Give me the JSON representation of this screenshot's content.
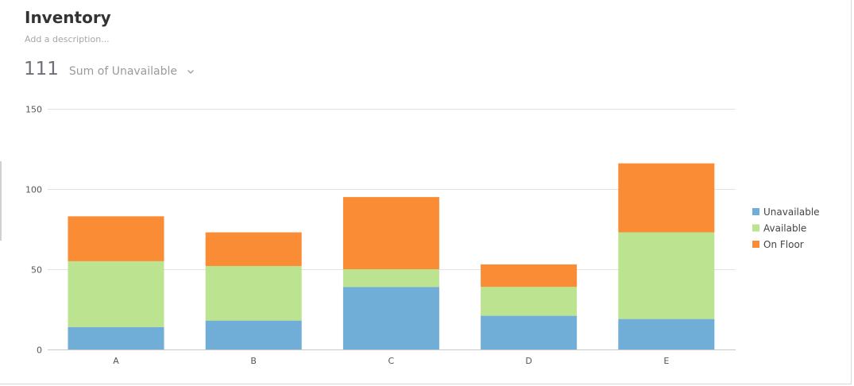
{
  "header": {
    "title": "Inventory",
    "description_placeholder": "Add a description..."
  },
  "metric": {
    "value": "111",
    "selector_label": "Sum of Unavailable"
  },
  "chart_data": {
    "type": "bar",
    "stacked": true,
    "categories": [
      "A",
      "B",
      "C",
      "D",
      "E"
    ],
    "series": [
      {
        "name": "Unavailable",
        "color": "#70aed7",
        "values": [
          14,
          18,
          39,
          21,
          19
        ]
      },
      {
        "name": "Available",
        "color": "#bce38f",
        "values": [
          41,
          34,
          11,
          18,
          54
        ]
      },
      {
        "name": "On Floor",
        "color": "#fb8c36",
        "values": [
          28,
          21,
          45,
          14,
          43
        ]
      }
    ],
    "ylim": [
      0,
      150
    ],
    "yticks": [
      0,
      50,
      100,
      150
    ],
    "grid": true,
    "legend_position": "right"
  }
}
